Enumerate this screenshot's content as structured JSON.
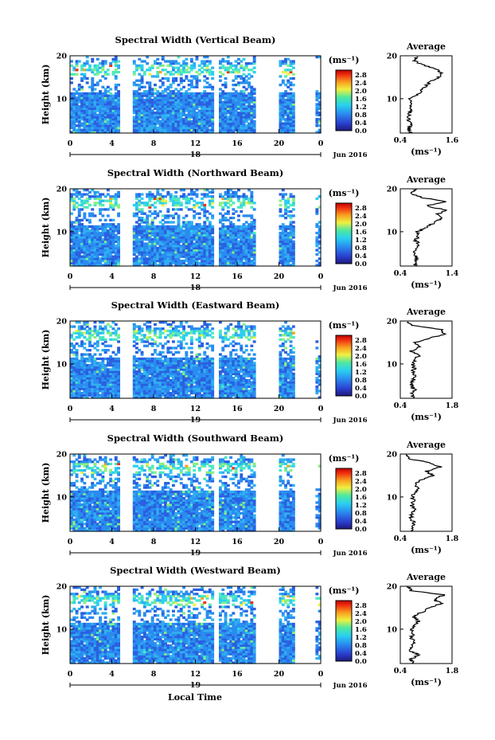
{
  "figure": {
    "xlabel_bottom": "Local Time",
    "ylabel": "Height (km)",
    "colorbar_unit": "(ms⁻¹)",
    "avg_title": "Average",
    "avg_xlabel": "(ms⁻¹)",
    "date_label": "Jun 2016",
    "colorbar_ticks": [
      "0.0",
      "0.4",
      "0.8",
      "1.2",
      "1.6",
      "2.0",
      "2.4",
      "2.8"
    ]
  },
  "chart_data": [
    {
      "type": "heatmap",
      "title": "Spectral Width (Vertical Beam)",
      "xlim": [
        0,
        24
      ],
      "ylim": [
        2,
        20
      ],
      "xticks": [
        "0",
        "4",
        "8",
        "12",
        "16",
        "20",
        "0"
      ],
      "day_label": "18",
      "yticks": [
        "10",
        "20"
      ],
      "avg_profile": {
        "xlim": [
          0.4,
          1.6
        ],
        "xticks": [
          "0.4",
          "1.6"
        ],
        "height": [
          2,
          3,
          4,
          5,
          6,
          7,
          8,
          9,
          10,
          11,
          12,
          13,
          14,
          15,
          16,
          17,
          18,
          19,
          20
        ],
        "value": [
          0.62,
          0.6,
          0.66,
          0.58,
          0.6,
          0.64,
          0.6,
          0.66,
          0.62,
          0.8,
          0.9,
          1.0,
          1.1,
          1.3,
          1.35,
          1.2,
          0.9,
          0.7,
          0.8
        ]
      }
    },
    {
      "type": "heatmap",
      "title": "Spectral Width (Northward Beam)",
      "xlim": [
        0,
        24
      ],
      "ylim": [
        2,
        20
      ],
      "xticks": [
        "0",
        "4",
        "8",
        "12",
        "16",
        "20",
        "0"
      ],
      "day_label": "18",
      "yticks": [
        "10",
        "20"
      ],
      "avg_profile": {
        "xlim": [
          0.4,
          1.4
        ],
        "xticks": [
          "0.4",
          "1.4"
        ],
        "height": [
          2,
          3,
          4,
          5,
          6,
          7,
          8,
          9,
          10,
          11,
          12,
          13,
          14,
          15,
          16,
          17,
          18,
          19,
          20
        ],
        "value": [
          0.7,
          0.68,
          0.72,
          0.66,
          0.7,
          0.75,
          0.7,
          0.76,
          0.72,
          0.9,
          1.05,
          1.2,
          1.1,
          1.3,
          0.9,
          1.25,
          0.8,
          0.6,
          0.7
        ]
      }
    },
    {
      "type": "heatmap",
      "title": "Spectral Width (Eastward Beam)",
      "xlim": [
        0,
        24
      ],
      "ylim": [
        2,
        20
      ],
      "xticks": [
        "0",
        "4",
        "8",
        "12",
        "16",
        "20",
        "0"
      ],
      "day_label": "19",
      "yticks": [
        "10",
        "20"
      ],
      "avg_profile": {
        "xlim": [
          0.4,
          1.8
        ],
        "xticks": [
          "0.4",
          "1.8"
        ],
        "height": [
          2,
          3,
          4,
          5,
          6,
          7,
          8,
          9,
          10,
          11,
          12,
          13,
          14,
          15,
          16,
          17,
          18,
          19,
          20
        ],
        "value": [
          0.75,
          0.72,
          0.8,
          0.7,
          0.74,
          0.8,
          0.72,
          0.78,
          0.74,
          0.8,
          0.9,
          0.7,
          0.95,
          0.8,
          1.2,
          1.6,
          1.5,
          0.7,
          0.6
        ]
      }
    },
    {
      "type": "heatmap",
      "title": "Spectral Width (Southward Beam)",
      "xlim": [
        0,
        24
      ],
      "ylim": [
        2,
        20
      ],
      "xticks": [
        "0",
        "4",
        "8",
        "12",
        "16",
        "20",
        "0"
      ],
      "day_label": "19",
      "yticks": [
        "10",
        "20"
      ],
      "avg_profile": {
        "xlim": [
          0.4,
          1.8
        ],
        "xticks": [
          "0.4",
          "1.8"
        ],
        "height": [
          2,
          3,
          4,
          5,
          6,
          7,
          8,
          9,
          10,
          11,
          12,
          13,
          14,
          15,
          16,
          17,
          18,
          19,
          20
        ],
        "value": [
          0.72,
          0.7,
          0.78,
          0.68,
          0.72,
          0.78,
          0.7,
          0.76,
          0.72,
          0.8,
          0.88,
          0.8,
          0.95,
          1.3,
          1.1,
          1.5,
          1.2,
          0.6,
          0.55
        ]
      }
    },
    {
      "type": "heatmap",
      "title": "Spectral Width (Westward Beam)",
      "xlim": [
        0,
        24
      ],
      "ylim": [
        2,
        20
      ],
      "xticks": [
        "0",
        "4",
        "8",
        "12",
        "16",
        "20",
        "0"
      ],
      "day_label": "19",
      "yticks": [
        "10",
        "20"
      ],
      "avg_profile": {
        "xlim": [
          0.4,
          1.8
        ],
        "xticks": [
          "0.4",
          "1.8"
        ],
        "height": [
          2,
          3,
          4,
          5,
          6,
          7,
          8,
          9,
          10,
          11,
          12,
          13,
          14,
          15,
          16,
          17,
          18,
          19,
          20
        ],
        "value": [
          0.72,
          0.7,
          0.9,
          0.66,
          0.72,
          0.78,
          0.7,
          0.76,
          0.72,
          0.8,
          0.9,
          0.75,
          1.0,
          1.2,
          1.5,
          1.3,
          1.6,
          0.7,
          0.6
        ]
      }
    }
  ]
}
